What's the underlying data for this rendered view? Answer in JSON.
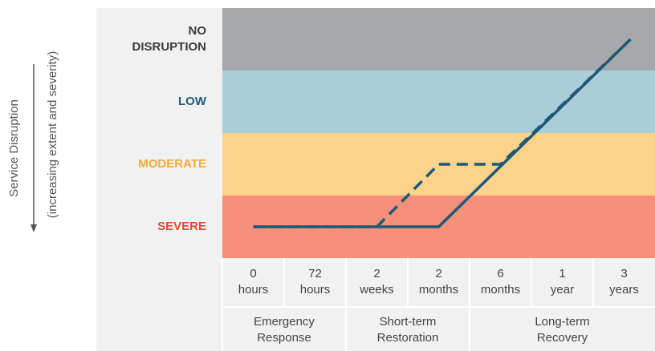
{
  "chart_data": {
    "type": "line",
    "y_label": "Service Disruption",
    "y_sublabel": "(increasing extent and severity)",
    "ylim": [
      0,
      4
    ],
    "bands": [
      {
        "label": [
          "NO",
          "DISRUPTION"
        ],
        "color": "#a7a8ab",
        "label_color": "#3c3c3c"
      },
      {
        "label": [
          "LOW"
        ],
        "color": "#abcdd9",
        "label_color": "#1d5a78"
      },
      {
        "label": [
          "MODERATE"
        ],
        "color": "#fdd28a",
        "label_color": "#f0ab35"
      },
      {
        "label": [
          "SEVERE"
        ],
        "color": "#f5917a",
        "label_color": "#e0492f"
      }
    ],
    "categories": [
      [
        "0",
        "hours"
      ],
      [
        "72",
        "hours"
      ],
      [
        "2",
        "weeks"
      ],
      [
        "2",
        "months"
      ],
      [
        "6",
        "months"
      ],
      [
        "1",
        "year"
      ],
      [
        "3",
        "years"
      ]
    ],
    "phases": [
      [
        "Emergency",
        "Response"
      ],
      [
        "Short-term",
        "Restoration"
      ],
      [
        "Long-term",
        "Recovery"
      ]
    ],
    "series": [
      {
        "style": "dashed",
        "color": "#1d5a78",
        "values": [
          0.5,
          null,
          0.5,
          1.5,
          1.5,
          null,
          3.5
        ]
      },
      {
        "style": "solid",
        "color": "#1d5a78",
        "values": [
          0.5,
          null,
          null,
          0.5,
          null,
          null,
          3.5
        ]
      }
    ]
  }
}
